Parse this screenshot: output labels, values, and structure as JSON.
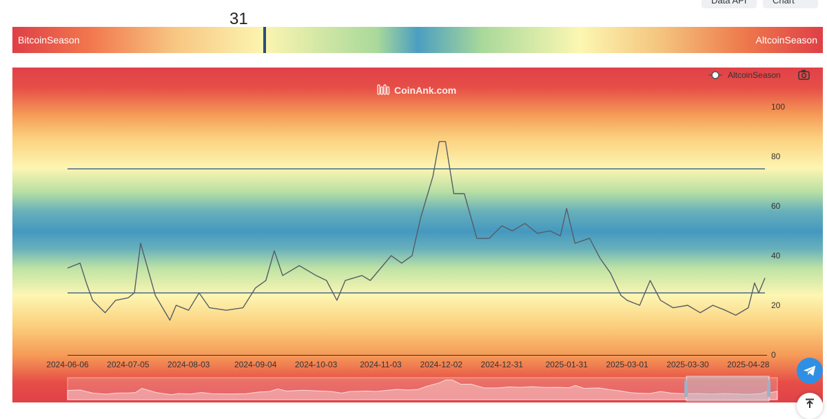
{
  "header": {
    "api_label": "Data API",
    "pro_label": "Pro Chart"
  },
  "indicator": {
    "value": "31",
    "left_label": "BitcoinSeason",
    "right_label": "AltcoinSeason"
  },
  "watermark": "CoinAnk.com",
  "icons": [
    "camera-icon",
    "telegram-icon",
    "back-to-top-icon",
    "coinank-logo-icon"
  ],
  "colors": {
    "line": "#555c66",
    "threshold": "#4a6a8a",
    "marker": "#2a4f7c",
    "telegram": "#2f8fe4"
  },
  "chart_data": {
    "type": "line",
    "legend": {
      "position": "top-right",
      "entries": [
        "AltcoinSeason"
      ]
    },
    "ylim": [
      0,
      100
    ],
    "yticks": [
      0,
      20,
      40,
      60,
      80,
      100
    ],
    "grid": false,
    "x_tick_labels": [
      "2024-06-06",
      "2024-07-05",
      "2024-08-03",
      "2024-09-04",
      "2024-10-03",
      "2024-11-03",
      "2024-12-02",
      "2024-12-31",
      "2025-01-31",
      "2025-03-01",
      "2025-03-30",
      "2025-04-28"
    ],
    "reference_lines": [
      75,
      25
    ],
    "series": [
      {
        "name": "AltcoinSeason",
        "points": [
          [
            "2024-06-06",
            35
          ],
          [
            "2024-06-12",
            37
          ],
          [
            "2024-06-15",
            29
          ],
          [
            "2024-06-18",
            22
          ],
          [
            "2024-06-24",
            17
          ],
          [
            "2024-06-29",
            22
          ],
          [
            "2024-07-05",
            23
          ],
          [
            "2024-07-08",
            25
          ],
          [
            "2024-07-11",
            45
          ],
          [
            "2024-07-15",
            33
          ],
          [
            "2024-07-18",
            24
          ],
          [
            "2024-07-25",
            14
          ],
          [
            "2024-07-28",
            20
          ],
          [
            "2024-08-03",
            18
          ],
          [
            "2024-08-08",
            25
          ],
          [
            "2024-08-13",
            19
          ],
          [
            "2024-08-21",
            18
          ],
          [
            "2024-08-29",
            19
          ],
          [
            "2024-09-04",
            27
          ],
          [
            "2024-09-09",
            30
          ],
          [
            "2024-09-13",
            42
          ],
          [
            "2024-09-17",
            32
          ],
          [
            "2024-09-25",
            36
          ],
          [
            "2024-10-03",
            32
          ],
          [
            "2024-10-08",
            30
          ],
          [
            "2024-10-13",
            22
          ],
          [
            "2024-10-17",
            30
          ],
          [
            "2024-10-25",
            32
          ],
          [
            "2024-10-29",
            30
          ],
          [
            "2024-11-03",
            35
          ],
          [
            "2024-11-08",
            40
          ],
          [
            "2024-11-13",
            37
          ],
          [
            "2024-11-18",
            40
          ],
          [
            "2024-11-22",
            55
          ],
          [
            "2024-11-28",
            72
          ],
          [
            "2024-12-01",
            86
          ],
          [
            "2024-12-04",
            86
          ],
          [
            "2024-12-08",
            65
          ],
          [
            "2024-12-13",
            65
          ],
          [
            "2024-12-19",
            47
          ],
          [
            "2024-12-25",
            47
          ],
          [
            "2024-12-31",
            52
          ],
          [
            "2025-01-05",
            50
          ],
          [
            "2025-01-11",
            53
          ],
          [
            "2025-01-17",
            49
          ],
          [
            "2025-01-23",
            50
          ],
          [
            "2025-01-28",
            48
          ],
          [
            "2025-01-31",
            59
          ],
          [
            "2025-02-04",
            45
          ],
          [
            "2025-02-11",
            47
          ],
          [
            "2025-02-16",
            39
          ],
          [
            "2025-02-21",
            33
          ],
          [
            "2025-02-26",
            24
          ],
          [
            "2025-03-01",
            22
          ],
          [
            "2025-03-07",
            20
          ],
          [
            "2025-03-12",
            30
          ],
          [
            "2025-03-17",
            22
          ],
          [
            "2025-03-23",
            19
          ],
          [
            "2025-03-30",
            20
          ],
          [
            "2025-04-05",
            17
          ],
          [
            "2025-04-11",
            20
          ],
          [
            "2025-04-17",
            18
          ],
          [
            "2025-04-22",
            16
          ],
          [
            "2025-04-28",
            19
          ],
          [
            "2025-05-01",
            29
          ],
          [
            "2025-05-03",
            25
          ],
          [
            "2025-05-06",
            31
          ]
        ]
      }
    ]
  }
}
